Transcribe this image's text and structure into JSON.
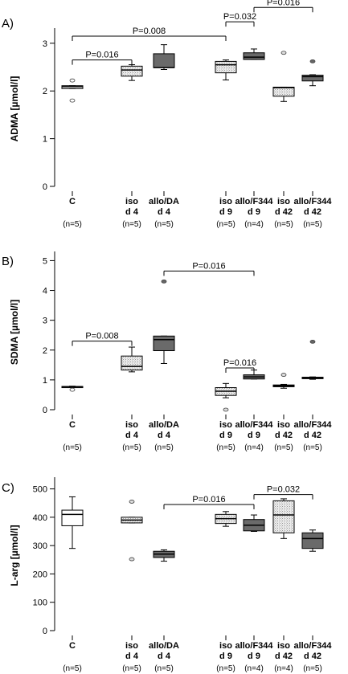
{
  "colors": {
    "control": "#ffffff",
    "iso": "#d4d4d4",
    "allo": "#6a6a6a",
    "line": "#000000"
  },
  "groups": [
    {
      "label": [
        "C",
        ""
      ],
      "n_text": [
        "(",
        "n",
        "=5)"
      ]
    },
    {
      "label": [
        "iso",
        "d 4"
      ],
      "n_text": [
        "(",
        "n",
        "=5)"
      ]
    },
    {
      "label": [
        "allo/DA",
        "d 4"
      ],
      "n_text": [
        "(",
        "n",
        "=5)"
      ]
    },
    {
      "label": [
        "iso",
        "d 9"
      ],
      "n_text": [
        "(",
        "n",
        "=5)"
      ]
    },
    {
      "label": [
        "allo/F344",
        "d 9"
      ],
      "n_text": [
        "(",
        "n",
        "=4)"
      ]
    },
    {
      "label": [
        "iso",
        "d 42"
      ],
      "n_text": [
        "(",
        "n",
        "=5)"
      ]
    },
    {
      "label": [
        "allo/F344",
        "d 42"
      ],
      "n_text": [
        "(",
        "n",
        "=5)"
      ]
    }
  ],
  "chart_data": [
    {
      "type": "box",
      "panel_label": "A)",
      "ylabel": "ADMA [µmol/l]",
      "ylim": [
        0,
        3.25
      ],
      "yticks": [
        0,
        1,
        2,
        3
      ],
      "c_labels": [
        "(n=5)",
        "(n=5)",
        "(n=5)",
        "(n=5)",
        "(n=4)",
        "(n=5)",
        "(n=5)"
      ],
      "boxes": [
        {
          "fill": "control",
          "min": 2.05,
          "q1": 2.05,
          "median": 2.09,
          "q3": 2.11,
          "max": 2.11,
          "outliers": [
            2.22,
            1.8
          ]
        },
        {
          "fill": "iso",
          "min": 2.22,
          "q1": 2.31,
          "median": 2.44,
          "q3": 2.52,
          "max": 2.55,
          "outliers": []
        },
        {
          "fill": "allo",
          "min": 2.45,
          "q1": 2.49,
          "median": 2.49,
          "q3": 2.78,
          "max": 2.97,
          "outliers": []
        },
        {
          "fill": "iso",
          "min": 2.23,
          "q1": 2.38,
          "median": 2.55,
          "q3": 2.62,
          "max": 2.65,
          "outliers": []
        },
        {
          "fill": "allo",
          "min": 2.66,
          "q1": 2.66,
          "median": 2.71,
          "q3": 2.8,
          "max": 2.88,
          "outliers": []
        },
        {
          "fill": "iso",
          "min": 1.78,
          "q1": 1.89,
          "median": 2.07,
          "q3": 2.08,
          "max": 2.08,
          "outliers": [
            2.8
          ]
        },
        {
          "fill": "allo",
          "min": 2.11,
          "q1": 2.21,
          "median": 2.3,
          "q3": 2.33,
          "max": 2.34,
          "outliers": [
            2.62
          ]
        }
      ],
      "brackets": [
        {
          "from": 0,
          "to": 1,
          "label": "P=0.016",
          "y": 2.65
        },
        {
          "from": 0,
          "to": 3,
          "label": "P=0.008",
          "y": 3.15
        },
        {
          "from": 3,
          "to": 4,
          "label": "P=0.032",
          "y": 3.45
        },
        {
          "from": 4,
          "to": 6,
          "label": "P=0.016",
          "y": 3.75
        }
      ]
    },
    {
      "type": "box",
      "panel_label": "B)",
      "ylabel": "SDMA [µmol/l]",
      "ylim": [
        0,
        5.2
      ],
      "yticks": [
        0,
        1,
        2,
        3,
        4,
        5
      ],
      "c_labels": [
        "(n=5)",
        "(n=5)",
        "(n=5)",
        "(n=5)",
        "(n=4)",
        "(n=5)",
        "(n=5)"
      ],
      "boxes": [
        {
          "fill": "control",
          "min": 0.75,
          "q1": 0.76,
          "median": 0.77,
          "q3": 0.78,
          "max": 0.79,
          "outliers": [
            0.67
          ]
        },
        {
          "fill": "iso",
          "min": 1.27,
          "q1": 1.33,
          "median": 1.45,
          "q3": 1.8,
          "max": 2.1,
          "outliers": []
        },
        {
          "fill": "allo",
          "min": 1.55,
          "q1": 1.98,
          "median": 2.35,
          "q3": 2.47,
          "max": 2.47,
          "outliers": [
            4.3
          ]
        },
        {
          "fill": "iso",
          "min": 0.4,
          "q1": 0.48,
          "median": 0.62,
          "q3": 0.74,
          "max": 0.88,
          "outliers": [
            0.0
          ]
        },
        {
          "fill": "allo",
          "min": 1.03,
          "q1": 1.03,
          "median": 1.1,
          "q3": 1.17,
          "max": 1.33,
          "outliers": []
        },
        {
          "fill": "iso",
          "min": 0.72,
          "q1": 0.77,
          "median": 0.8,
          "q3": 0.83,
          "max": 0.85,
          "outliers": [
            1.17
          ]
        },
        {
          "fill": "allo",
          "min": 1.02,
          "q1": 1.04,
          "median": 1.07,
          "q3": 1.09,
          "max": 1.1,
          "outliers": [
            2.28
          ]
        }
      ],
      "brackets": [
        {
          "from": 0,
          "to": 1,
          "label": "P=0.008",
          "y": 2.3
        },
        {
          "from": 2,
          "to": 4,
          "label": "P=0.016",
          "y": 4.65
        },
        {
          "from": 3,
          "to": 4,
          "label": "P=0.016",
          "y": 1.4
        }
      ]
    },
    {
      "type": "box",
      "panel_label": "C)",
      "ylabel": "L-arg [µmol/l]",
      "ylim": [
        0,
        530
      ],
      "yticks": [
        0,
        100,
        200,
        300,
        400,
        500
      ],
      "c_labels": [
        "(n=5)",
        "(n=5)",
        "(n=5)",
        "(n=5)",
        "(n=4)",
        "(n=4)",
        "(n=5)"
      ],
      "boxes": [
        {
          "fill": "control",
          "min": 290,
          "q1": 370,
          "median": 410,
          "q3": 425,
          "max": 472,
          "outliers": []
        },
        {
          "fill": "iso",
          "min": 380,
          "q1": 380,
          "median": 390,
          "q3": 400,
          "max": 400,
          "outliers": [
            455,
            252
          ]
        },
        {
          "fill": "allo",
          "min": 245,
          "q1": 258,
          "median": 270,
          "q3": 280,
          "max": 285,
          "outliers": []
        },
        {
          "fill": "iso",
          "min": 368,
          "q1": 378,
          "median": 395,
          "q3": 410,
          "max": 420,
          "outliers": []
        },
        {
          "fill": "allo",
          "min": 350,
          "q1": 352,
          "median": 372,
          "q3": 392,
          "max": 408,
          "outliers": []
        },
        {
          "fill": "iso",
          "min": 325,
          "q1": 345,
          "median": 408,
          "q3": 458,
          "max": 465,
          "outliers": []
        },
        {
          "fill": "allo",
          "min": 280,
          "q1": 290,
          "median": 325,
          "q3": 345,
          "max": 355,
          "outliers": []
        }
      ],
      "brackets": [
        {
          "from": 2,
          "to": 4,
          "label": "P=0.016",
          "y": 445
        },
        {
          "from": 4,
          "to": 6,
          "label": "P=0.032",
          "y": 480
        }
      ]
    }
  ]
}
